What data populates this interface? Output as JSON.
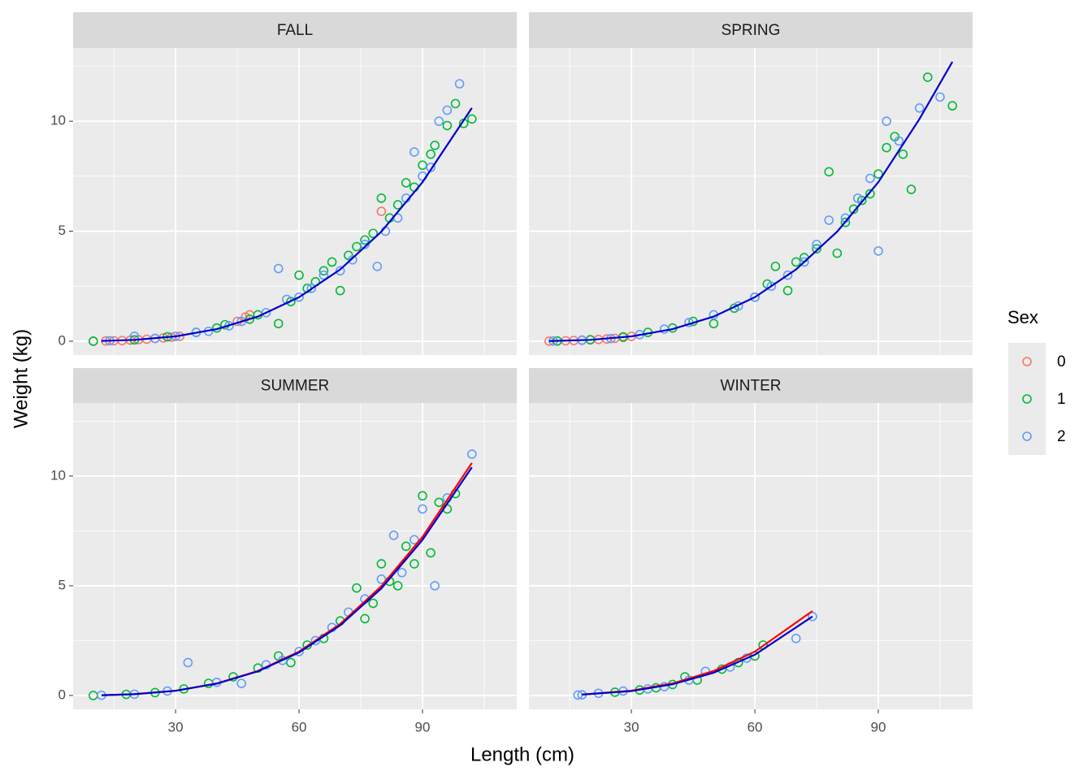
{
  "chart_data": [
    {
      "type": "scatter",
      "title": "FALL",
      "xlim": [
        5.1,
        112.9
      ],
      "ylim": [
        -0.63,
        13.33
      ],
      "xticks": [
        30,
        60,
        90
      ],
      "yticks": [
        0,
        5,
        10
      ],
      "xminor": [
        15,
        45,
        75,
        105
      ],
      "yminor": [
        2.5,
        7.5,
        12.5
      ],
      "grid": true,
      "series": [
        {
          "name": "0",
          "color": "#F8766D",
          "x": [
            10,
            13,
            15,
            17,
            19,
            21,
            23,
            25,
            27,
            29,
            31,
            45,
            47,
            48,
            80
          ],
          "values": [
            0,
            0.01,
            0.02,
            0.03,
            0.05,
            0.07,
            0.09,
            0.12,
            0.15,
            0.18,
            0.22,
            0.9,
            1.1,
            1.2,
            5.9
          ]
        },
        {
          "name": "1",
          "color": "#00BA38",
          "x": [
            10,
            20,
            28,
            35,
            40,
            42,
            48,
            50,
            55,
            58,
            60,
            62,
            64,
            66,
            68,
            70,
            72,
            74,
            76,
            78,
            80,
            82,
            84,
            86,
            88,
            90,
            92,
            93,
            96,
            98,
            100,
            102
          ],
          "values": [
            0,
            0.06,
            0.2,
            0.4,
            0.6,
            0.75,
            1.0,
            1.2,
            0.8,
            1.8,
            3.0,
            2.4,
            2.7,
            3.2,
            3.6,
            2.3,
            3.9,
            4.3,
            4.6,
            4.9,
            6.5,
            5.6,
            6.2,
            7.2,
            7.0,
            8.0,
            8.5,
            8.9,
            9.8,
            10.8,
            9.9,
            10.1
          ]
        },
        {
          "name": "2",
          "color": "#619CFF",
          "x": [
            14,
            20,
            25,
            30,
            35,
            38,
            43,
            46,
            52,
            55,
            57,
            60,
            63,
            66,
            70,
            73,
            76,
            79,
            81,
            84,
            86,
            88,
            90,
            92,
            94,
            96,
            99
          ],
          "values": [
            0.02,
            0.22,
            0.13,
            0.22,
            0.4,
            0.45,
            0.7,
            0.9,
            1.3,
            3.3,
            1.9,
            2.0,
            2.4,
            3.0,
            3.2,
            3.7,
            4.4,
            3.4,
            5.0,
            5.6,
            6.5,
            8.6,
            7.5,
            7.9,
            10.0,
            10.5,
            11.7
          ]
        }
      ],
      "fits": [
        {
          "color": "#0000CD",
          "x": [
            12,
            20,
            30,
            40,
            50,
            60,
            70,
            80,
            90,
            102
          ],
          "values": [
            0.012,
            0.061,
            0.22,
            0.55,
            1.12,
            2.0,
            3.26,
            4.98,
            7.23,
            10.6
          ]
        }
      ]
    },
    {
      "type": "scatter",
      "title": "SPRING",
      "xlim": [
        5.1,
        112.9
      ],
      "ylim": [
        -0.63,
        13.33
      ],
      "xticks": [
        30,
        60,
        90
      ],
      "yticks": [
        0,
        5,
        10
      ],
      "xminor": [
        15,
        45,
        75,
        105
      ],
      "yminor": [
        2.5,
        7.5,
        12.5
      ],
      "grid": true,
      "series": [
        {
          "name": "0",
          "color": "#F8766D",
          "x": [
            10,
            12,
            14,
            16,
            18,
            20,
            22,
            24,
            26,
            28,
            30
          ],
          "values": [
            0,
            0.01,
            0.02,
            0.03,
            0.04,
            0.06,
            0.08,
            0.1,
            0.13,
            0.17,
            0.22
          ]
        },
        {
          "name": "1",
          "color": "#00BA38",
          "x": [
            12,
            20,
            28,
            34,
            40,
            45,
            50,
            55,
            60,
            63,
            65,
            68,
            70,
            72,
            75,
            78,
            80,
            82,
            84,
            86,
            88,
            90,
            92,
            94,
            96,
            98,
            102,
            108
          ],
          "values": [
            0.01,
            0.07,
            0.2,
            0.4,
            0.6,
            0.9,
            0.8,
            1.5,
            2.0,
            2.6,
            3.4,
            2.3,
            3.6,
            3.8,
            4.2,
            7.7,
            4.0,
            5.4,
            6.0,
            6.4,
            6.7,
            7.6,
            8.8,
            9.3,
            8.5,
            6.9,
            12.0,
            10.7
          ]
        },
        {
          "name": "2",
          "color": "#619CFF",
          "x": [
            11,
            18,
            25,
            32,
            38,
            44,
            50,
            56,
            60,
            64,
            68,
            72,
            75,
            78,
            82,
            85,
            88,
            90,
            92,
            95,
            100,
            105
          ],
          "values": [
            0.01,
            0.05,
            0.12,
            0.3,
            0.55,
            0.85,
            1.2,
            1.6,
            2.0,
            2.5,
            3.0,
            3.6,
            4.4,
            5.5,
            5.6,
            6.5,
            7.4,
            4.1,
            10.0,
            9.1,
            10.6,
            11.1
          ]
        }
      ],
      "fits": [
        {
          "color": "#0000CD",
          "x": [
            10,
            20,
            30,
            40,
            50,
            60,
            70,
            80,
            90,
            100,
            108
          ],
          "values": [
            0.007,
            0.061,
            0.22,
            0.55,
            1.12,
            2.0,
            3.26,
            4.98,
            7.23,
            10.1,
            12.7
          ]
        }
      ]
    },
    {
      "type": "scatter",
      "title": "SUMMER",
      "xlim": [
        5.1,
        112.9
      ],
      "ylim": [
        -0.63,
        13.33
      ],
      "xticks": [
        30,
        60,
        90
      ],
      "yticks": [
        0,
        5,
        10
      ],
      "xminor": [
        15,
        45,
        75,
        105
      ],
      "yminor": [
        2.5,
        7.5,
        12.5
      ],
      "grid": true,
      "series": [
        {
          "name": "1",
          "color": "#00BA38",
          "x": [
            10,
            18,
            25,
            32,
            38,
            44,
            50,
            55,
            58,
            62,
            66,
            70,
            74,
            76,
            78,
            80,
            82,
            84,
            86,
            88,
            90,
            92,
            94,
            96,
            98
          ],
          "values": [
            0,
            0.05,
            0.13,
            0.3,
            0.55,
            0.85,
            1.25,
            1.8,
            1.5,
            2.3,
            2.6,
            3.4,
            4.9,
            3.5,
            4.2,
            6.0,
            5.2,
            5.0,
            6.8,
            6.0,
            9.1,
            6.5,
            8.8,
            8.5,
            9.2
          ]
        },
        {
          "name": "2",
          "color": "#619CFF",
          "x": [
            12,
            20,
            28,
            33,
            40,
            46,
            52,
            56,
            60,
            64,
            68,
            72,
            76,
            80,
            83,
            85,
            88,
            90,
            93,
            96,
            102
          ],
          "values": [
            0.01,
            0.06,
            0.2,
            1.5,
            0.6,
            0.55,
            1.4,
            1.6,
            2.0,
            2.5,
            3.1,
            3.8,
            4.4,
            5.3,
            7.3,
            5.6,
            7.1,
            8.5,
            5.0,
            9.0,
            11.0
          ]
        }
      ],
      "fits": [
        {
          "color": "#FF0000",
          "x": [
            12,
            20,
            30,
            40,
            50,
            60,
            70,
            80,
            90,
            102
          ],
          "values": [
            0.012,
            0.061,
            0.22,
            0.55,
            1.12,
            2.0,
            3.26,
            4.98,
            7.23,
            10.6
          ]
        },
        {
          "color": "#0000CD",
          "x": [
            12,
            20,
            30,
            40,
            50,
            60,
            70,
            80,
            90,
            102
          ],
          "values": [
            0.012,
            0.06,
            0.215,
            0.54,
            1.1,
            1.96,
            3.2,
            4.88,
            7.09,
            10.4
          ]
        }
      ]
    },
    {
      "type": "scatter",
      "title": "WINTER",
      "xlim": [
        5.1,
        112.9
      ],
      "ylim": [
        -0.63,
        13.33
      ],
      "xticks": [
        30,
        60,
        90
      ],
      "yticks": [
        0,
        5,
        10
      ],
      "xminor": [
        15,
        45,
        75,
        105
      ],
      "yminor": [
        2.5,
        7.5,
        12.5
      ],
      "grid": true,
      "series": [
        {
          "name": "1",
          "color": "#00BA38",
          "x": [
            26,
            32,
            36,
            40,
            43,
            46,
            52,
            56,
            60,
            62
          ],
          "values": [
            0.15,
            0.25,
            0.35,
            0.5,
            0.85,
            0.7,
            1.2,
            1.5,
            1.8,
            2.3
          ]
        },
        {
          "name": "2",
          "color": "#619CFF",
          "x": [
            17,
            18,
            22,
            28,
            34,
            38,
            44,
            48,
            54,
            58,
            70,
            74
          ],
          "values": [
            0.02,
            0.03,
            0.1,
            0.2,
            0.3,
            0.4,
            0.7,
            1.1,
            1.3,
            1.7,
            2.6,
            3.6
          ]
        }
      ],
      "fits": [
        {
          "color": "#FF0000",
          "x": [
            18,
            30,
            40,
            50,
            60,
            74
          ],
          "values": [
            0.044,
            0.22,
            0.55,
            1.12,
            2.0,
            3.85
          ]
        },
        {
          "color": "#0000CD",
          "x": [
            18,
            30,
            40,
            50,
            60,
            74
          ],
          "values": [
            0.041,
            0.2,
            0.51,
            1.04,
            1.86,
            3.6
          ]
        }
      ]
    }
  ],
  "x_label": "Length (cm)",
  "y_label": "Weight (kg)",
  "legend_title": "Sex"
}
